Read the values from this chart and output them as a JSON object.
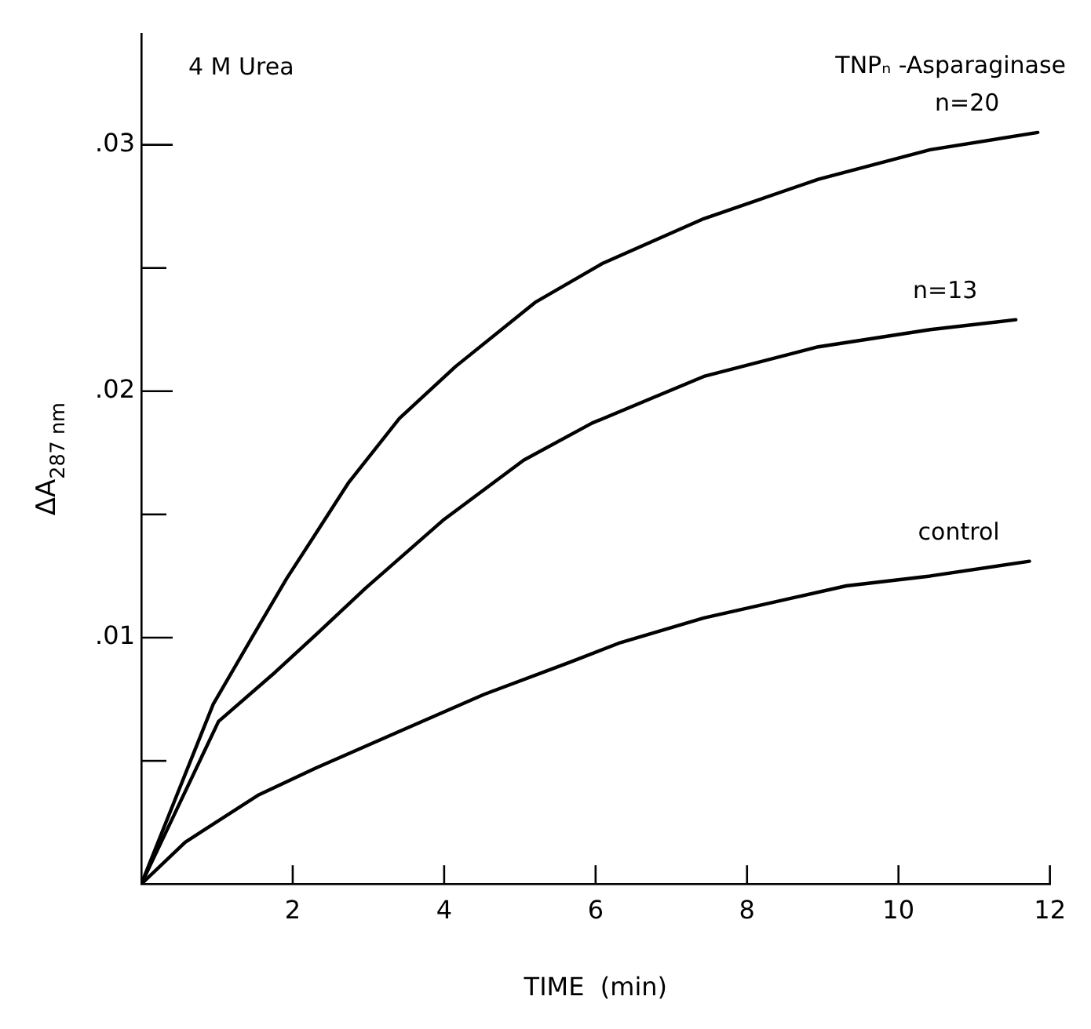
{
  "chart_data": {
    "type": "line",
    "xlabel": "TIME  (min)",
    "ylabel": "ΔA$_{287 nm}$",
    "legend_title": "TNPₙ -Asparaginase",
    "annotations": [
      "4 M Urea"
    ],
    "xlim": [
      0,
      12
    ],
    "xticks": [
      2,
      4,
      6,
      8,
      10,
      12
    ],
    "ylim": [
      0,
      0.0345
    ],
    "yticks": [
      {
        "value": 0.005,
        "label": null
      },
      {
        "value": 0.01,
        "label": ".01"
      },
      {
        "value": 0.015,
        "label": null
      },
      {
        "value": 0.02,
        "label": ".02"
      },
      {
        "value": 0.025,
        "label": null
      },
      {
        "value": 0.03,
        "label": ".03"
      }
    ],
    "grid": false,
    "legend": false,
    "marker": "none",
    "line_style": "solid",
    "series": [
      {
        "name": "n=20",
        "color": "#000000",
        "x": [
          0,
          0.95,
          1.48,
          1.92,
          2.3,
          2.74,
          3.41,
          4.15,
          5.2,
          6.1,
          7.43,
          8.94,
          10.42,
          11.84
        ],
        "values": [
          0,
          0.0073,
          0.0101,
          0.0124,
          0.0142,
          0.0163,
          0.0189,
          0.021,
          0.0236,
          0.0252,
          0.027,
          0.0286,
          0.0298,
          0.0305
        ]
      },
      {
        "name": "n=13",
        "color": "#000000",
        "x": [
          0,
          1.02,
          1.77,
          2.3,
          2.96,
          4.0,
          5.05,
          5.95,
          7.43,
          8.94,
          10.42,
          11.55
        ],
        "values": [
          0,
          0.0066,
          0.0086,
          0.0101,
          0.012,
          0.0148,
          0.0172,
          0.0187,
          0.0206,
          0.0218,
          0.0225,
          0.0229
        ]
      },
      {
        "name": "control",
        "color": "#000000",
        "x": [
          0,
          0.58,
          1.54,
          2.3,
          3.41,
          4.53,
          5.66,
          6.33,
          7.43,
          9.31,
          10.42,
          11.73
        ],
        "values": [
          0,
          0.0017,
          0.0036,
          0.0047,
          0.0062,
          0.0077,
          0.009,
          0.0098,
          0.0108,
          0.0121,
          0.0125,
          0.0131
        ]
      }
    ]
  }
}
